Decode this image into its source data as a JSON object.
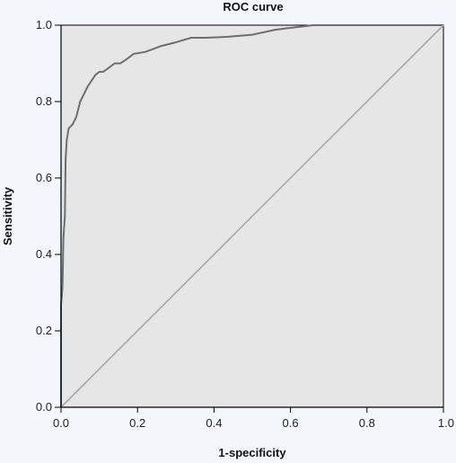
{
  "chart_data": {
    "type": "line",
    "title": "ROC curve",
    "xlabel": "1-specificity",
    "ylabel": "Sensitivity",
    "xlim": [
      0,
      1
    ],
    "ylim": [
      0,
      1
    ],
    "xticks": [
      0.0,
      0.2,
      0.4,
      0.6,
      0.8,
      1.0
    ],
    "yticks": [
      0.0,
      0.2,
      0.4,
      0.6,
      0.8,
      1.0
    ],
    "xtick_labels": [
      "0.0",
      "0.2",
      "0.4",
      "0.6",
      "0.8",
      "1.0"
    ],
    "ytick_labels": [
      "0.0",
      "0.2",
      "0.4",
      "0.6",
      "0.8",
      "1.0"
    ],
    "grid": false,
    "series": [
      {
        "x": [
          0.0,
          0.0,
          0.002,
          0.004,
          0.006,
          0.008,
          0.01,
          0.012,
          0.015,
          0.02,
          0.025,
          0.03,
          0.04,
          0.05,
          0.06,
          0.07,
          0.08,
          0.09,
          0.1,
          0.11,
          0.12,
          0.14,
          0.155,
          0.17,
          0.19,
          0.22,
          0.26,
          0.3,
          0.34,
          0.38,
          0.44,
          0.5,
          0.56,
          0.6,
          0.66,
          0.7,
          0.8,
          0.9,
          1.0
        ],
        "y": [
          0.0,
          0.27,
          0.29,
          0.32,
          0.44,
          0.47,
          0.5,
          0.65,
          0.7,
          0.73,
          0.735,
          0.74,
          0.76,
          0.8,
          0.82,
          0.84,
          0.855,
          0.87,
          0.878,
          0.878,
          0.885,
          0.9,
          0.9,
          0.91,
          0.925,
          0.93,
          0.945,
          0.955,
          0.967,
          0.967,
          0.97,
          0.975,
          0.988,
          0.993,
          1.0,
          1.0,
          1.0,
          1.0,
          1.0
        ],
        "color": "#6e6e6e"
      },
      {
        "x": [
          0.0,
          1.0
        ],
        "y": [
          0.0,
          1.0
        ],
        "color": "#a8a8a8"
      }
    ],
    "colors": {
      "page_background": "#f3f6fb",
      "plot_background": "#e6e6e6",
      "axis": "#000000"
    }
  }
}
